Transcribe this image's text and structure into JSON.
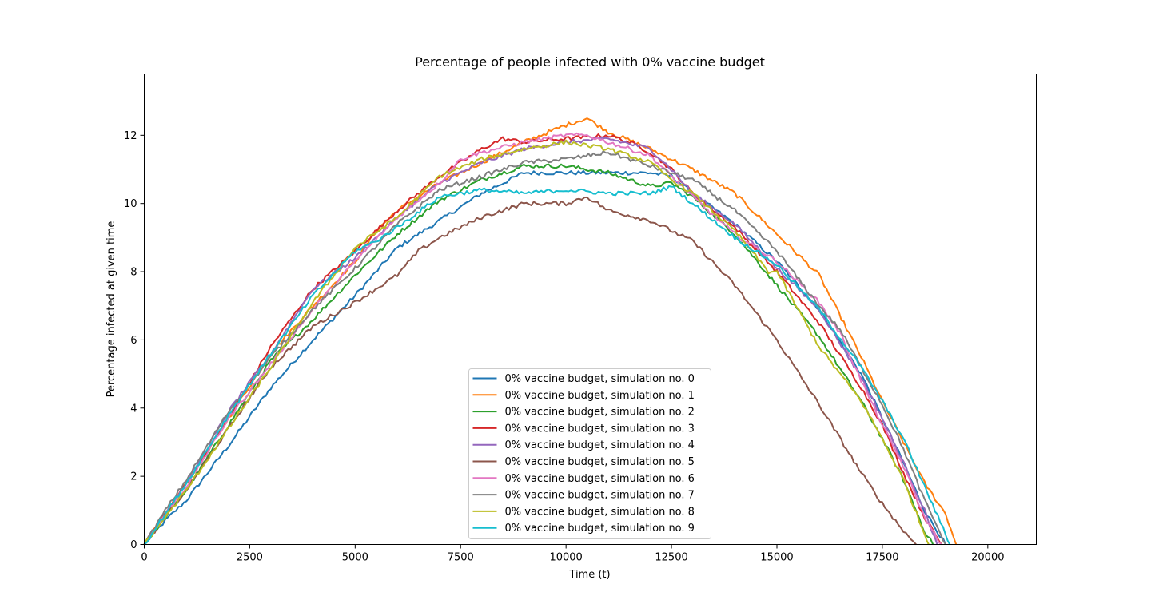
{
  "chart_data": {
    "type": "line",
    "title": "Percentage of people infected with 0% vaccine budget",
    "xlabel": "Time (t)",
    "ylabel": "Percentage infected at given time",
    "xlim": [
      0,
      21150
    ],
    "ylim": [
      0,
      13.8
    ],
    "xticks": [
      "0",
      "2500",
      "5000",
      "7500",
      "10000",
      "12500",
      "15000",
      "17500",
      "20000"
    ],
    "yticks": [
      "0",
      "2",
      "4",
      "6",
      "8",
      "10",
      "12"
    ],
    "grid": false,
    "legend_position": "lower center",
    "series": [
      {
        "name": "0% vaccine budget, simulation no. 0",
        "color": "#1f77b4",
        "x": [
          0,
          500,
          1000,
          2000,
          3000,
          4000,
          5000,
          6000,
          7000,
          8000,
          9000,
          10000,
          11000,
          12000,
          12500,
          13000,
          14000,
          15000,
          16000,
          17000,
          17500,
          18000,
          18500,
          19000
        ],
        "y": [
          0,
          0.7,
          1.3,
          2.9,
          4.6,
          6.0,
          7.3,
          8.7,
          9.5,
          10.3,
          10.9,
          10.9,
          10.9,
          10.9,
          10.8,
          10.3,
          9.4,
          8.3,
          6.9,
          5.0,
          3.7,
          2.4,
          1.0,
          0
        ]
      },
      {
        "name": "0% vaccine budget, simulation no. 1",
        "color": "#ff7f0e",
        "x": [
          0,
          500,
          1000,
          2000,
          3000,
          4000,
          5000,
          5500,
          6000,
          7000,
          8000,
          9000,
          10000,
          10500,
          11000,
          12000,
          13000,
          14000,
          15000,
          16000,
          17000,
          17500,
          18000,
          18500,
          19000,
          19250
        ],
        "y": [
          0,
          0.9,
          1.8,
          3.7,
          5.6,
          7.0,
          8.3,
          9.2,
          9.8,
          10.6,
          11.2,
          11.8,
          12.3,
          12.5,
          12.1,
          11.6,
          11.0,
          10.3,
          9.1,
          7.9,
          5.5,
          4.2,
          3.0,
          1.8,
          0.9,
          0
        ]
      },
      {
        "name": "0% vaccine budget, simulation no. 2",
        "color": "#2ca02c",
        "x": [
          0,
          500,
          1000,
          2000,
          3000,
          4000,
          5000,
          6000,
          7000,
          8000,
          9000,
          10000,
          11000,
          12000,
          12500,
          13000,
          14000,
          15000,
          16000,
          17000,
          17500,
          18000,
          18500,
          18700
        ],
        "y": [
          0,
          0.8,
          1.6,
          3.5,
          5.4,
          6.6,
          7.9,
          9.1,
          10.1,
          10.7,
          11.1,
          11.1,
          10.9,
          10.5,
          10.6,
          10.2,
          9.1,
          7.6,
          6.1,
          4.2,
          3.1,
          1.9,
          0.4,
          0
        ]
      },
      {
        "name": "0% vaccine budget, simulation no. 3",
        "color": "#d62728",
        "x": [
          0,
          500,
          1000,
          2000,
          3000,
          4000,
          5000,
          6000,
          7000,
          8000,
          8500,
          9000,
          10000,
          11000,
          11500,
          12000,
          12500,
          13000,
          14000,
          15000,
          16000,
          17000,
          17500,
          18000,
          18500,
          18900
        ],
        "y": [
          0,
          0.9,
          1.8,
          3.7,
          5.8,
          7.5,
          8.6,
          9.8,
          10.8,
          11.6,
          11.9,
          11.8,
          11.9,
          12.0,
          11.8,
          11.5,
          11.0,
          10.3,
          9.3,
          8.0,
          6.5,
          4.6,
          3.5,
          2.1,
          0.8,
          0
        ]
      },
      {
        "name": "0% vaccine budget, simulation no. 4",
        "color": "#9467bd",
        "x": [
          0,
          500,
          1000,
          2000,
          3000,
          4000,
          5000,
          6000,
          7000,
          8000,
          9000,
          10000,
          11000,
          12000,
          12500,
          13000,
          14000,
          15000,
          16000,
          17000,
          17500,
          18000,
          18500,
          18800
        ],
        "y": [
          0,
          0.9,
          1.8,
          3.9,
          5.6,
          7.5,
          8.4,
          9.6,
          10.6,
          11.2,
          11.6,
          11.8,
          11.9,
          11.6,
          11.0,
          10.3,
          9.4,
          8.1,
          6.9,
          4.9,
          3.7,
          2.4,
          1.0,
          0
        ]
      },
      {
        "name": "0% vaccine budget, simulation no. 5",
        "color": "#8c564b",
        "x": [
          0,
          500,
          1000,
          2000,
          3000,
          4000,
          5000,
          6000,
          6500,
          7000,
          8000,
          9000,
          10000,
          10500,
          11000,
          12000,
          13000,
          14000,
          15000,
          16000,
          17000,
          17500,
          18000,
          18300
        ],
        "y": [
          0,
          0.8,
          1.6,
          3.4,
          5.2,
          6.4,
          7.1,
          7.9,
          8.6,
          9.0,
          9.6,
          10.0,
          10.0,
          10.2,
          9.8,
          9.5,
          8.9,
          7.6,
          6.0,
          4.1,
          2.1,
          1.2,
          0.4,
          0
        ]
      },
      {
        "name": "0% vaccine budget, simulation no. 6",
        "color": "#e377c2",
        "x": [
          0,
          500,
          1000,
          2000,
          3000,
          4000,
          5000,
          6000,
          7000,
          7500,
          8000,
          9000,
          10000,
          10500,
          11000,
          12000,
          13000,
          14000,
          15000,
          16000,
          16500,
          17000,
          17500,
          18000,
          18500,
          18900
        ],
        "y": [
          0,
          0.9,
          1.7,
          3.7,
          5.3,
          6.9,
          8.3,
          9.6,
          10.6,
          11.3,
          11.5,
          11.8,
          12.0,
          12.0,
          11.8,
          11.4,
          10.2,
          9.1,
          8.3,
          7.1,
          6.2,
          4.8,
          3.5,
          2.3,
          0.8,
          0
        ]
      },
      {
        "name": "0% vaccine budget, simulation no. 7",
        "color": "#7f7f7f",
        "x": [
          0,
          500,
          1000,
          1500,
          2000,
          3000,
          4000,
          5000,
          6000,
          7000,
          8000,
          9000,
          10000,
          11000,
          12000,
          13000,
          14000,
          15000,
          16000,
          16500,
          17000,
          17500,
          18000,
          18500,
          19000
        ],
        "y": [
          0,
          1.0,
          1.9,
          2.9,
          3.9,
          5.5,
          6.9,
          8.1,
          9.4,
          10.4,
          10.8,
          11.2,
          11.3,
          11.5,
          11.1,
          10.7,
          9.8,
          8.6,
          7.0,
          6.3,
          5.2,
          4.1,
          2.8,
          1.3,
          0
        ]
      },
      {
        "name": "0% vaccine budget, simulation no. 8",
        "color": "#bcbd22",
        "x": [
          0,
          500,
          1000,
          2000,
          3000,
          4000,
          5000,
          6000,
          7000,
          8000,
          9000,
          10000,
          11000,
          12000,
          12500,
          13000,
          14000,
          14800,
          15000,
          16000,
          17000,
          17500,
          18000,
          18500,
          18600
        ],
        "y": [
          0,
          0.8,
          1.6,
          3.4,
          5.2,
          7.1,
          8.7,
          9.6,
          10.8,
          11.3,
          11.6,
          11.8,
          11.6,
          11.2,
          10.7,
          10.3,
          9.2,
          8.0,
          8.0,
          5.8,
          4.2,
          3.1,
          1.9,
          0.3,
          0
        ]
      },
      {
        "name": "0% vaccine budget, simulation no. 9",
        "color": "#17becf",
        "x": [
          0,
          500,
          1000,
          2000,
          3000,
          4000,
          5000,
          5500,
          6000,
          7000,
          8000,
          9000,
          10000,
          11000,
          12000,
          12500,
          13000,
          14000,
          15000,
          16000,
          17000,
          17500,
          18000,
          18500,
          19000,
          19100
        ],
        "y": [
          0,
          0.9,
          1.8,
          3.8,
          5.6,
          7.3,
          8.6,
          8.9,
          9.3,
          10.2,
          10.4,
          10.3,
          10.4,
          10.3,
          10.3,
          10.5,
          10.0,
          9.0,
          8.2,
          6.9,
          5.2,
          4.2,
          3.1,
          1.7,
          0.3,
          0
        ]
      }
    ]
  }
}
